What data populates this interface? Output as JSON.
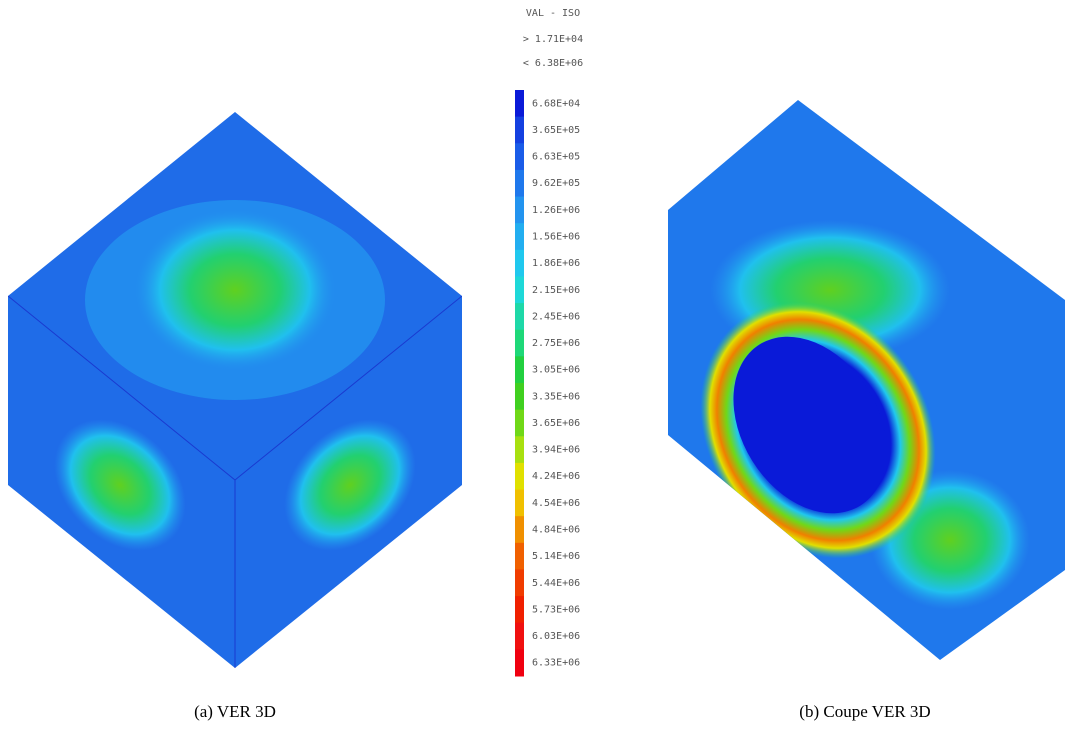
{
  "legend": {
    "title": "VAL - ISO",
    "max_note": "> 1.71E+04",
    "min_note": "< 6.38E+06",
    "entries": [
      {
        "label": "6.68E+04",
        "color": "#0a1ad8"
      },
      {
        "label": "3.65E+05",
        "color": "#1440e0"
      },
      {
        "label": "6.63E+05",
        "color": "#1a5ce8"
      },
      {
        "label": "9.62E+05",
        "color": "#1f78ec"
      },
      {
        "label": "1.26E+06",
        "color": "#2394ef"
      },
      {
        "label": "1.56E+06",
        "color": "#22aef0"
      },
      {
        "label": "1.86E+06",
        "color": "#20c8ee"
      },
      {
        "label": "2.15E+06",
        "color": "#1ed8d8"
      },
      {
        "label": "2.45E+06",
        "color": "#1ed8a8"
      },
      {
        "label": "2.75E+06",
        "color": "#1ed878"
      },
      {
        "label": "3.05E+06",
        "color": "#22d040"
      },
      {
        "label": "3.35E+06",
        "color": "#40d020"
      },
      {
        "label": "3.65E+06",
        "color": "#70d818"
      },
      {
        "label": "3.94E+06",
        "color": "#a8e010"
      },
      {
        "label": "4.24E+06",
        "color": "#e0e000"
      },
      {
        "label": "4.54E+06",
        "color": "#f0c000"
      },
      {
        "label": "4.84E+06",
        "color": "#f09000"
      },
      {
        "label": "5.14E+06",
        "color": "#f06000"
      },
      {
        "label": "5.44E+06",
        "color": "#f03c00"
      },
      {
        "label": "5.73E+06",
        "color": "#f02000"
      },
      {
        "label": "6.03E+06",
        "color": "#f01010"
      },
      {
        "label": "6.33E+06",
        "color": "#f00010"
      }
    ]
  },
  "captions": {
    "left": "(a)  VER 3D",
    "right": "(b)  Coupe VER 3D"
  }
}
